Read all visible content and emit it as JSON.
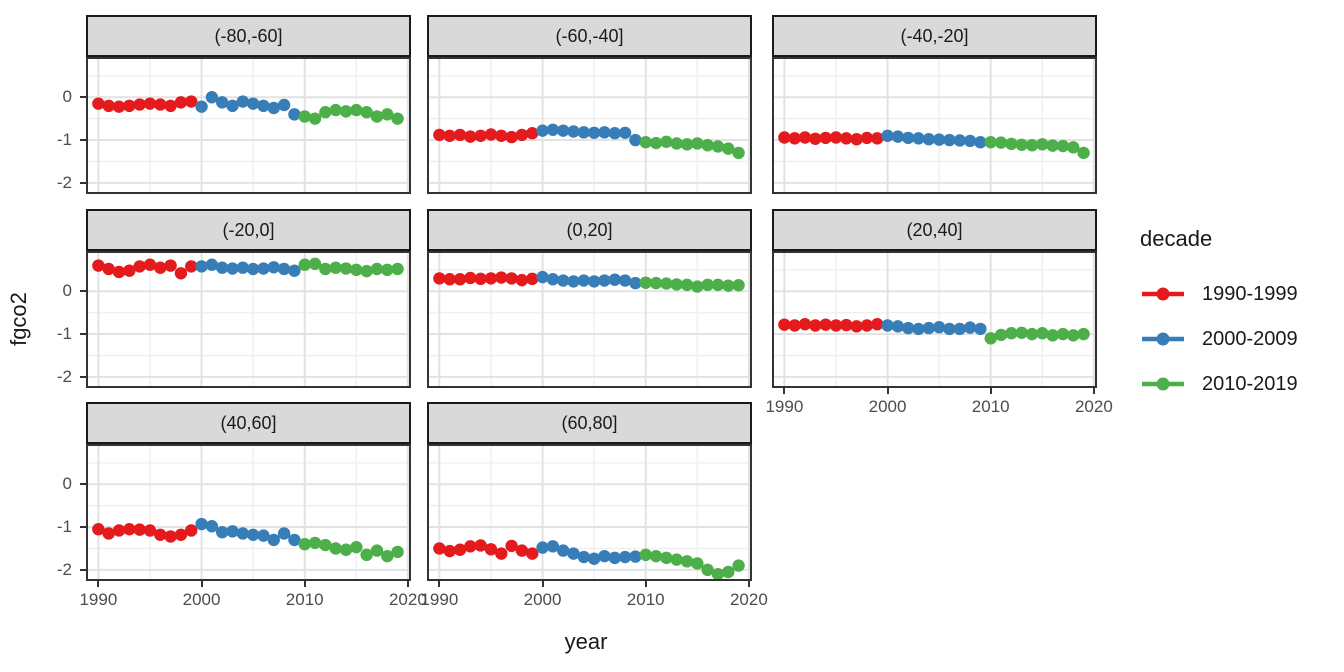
{
  "figure": {
    "x_axis_title": "year",
    "y_axis_title": "fgco2",
    "legend_title": "decade"
  },
  "chart_data": {
    "type": "scatter",
    "xlabel": "year",
    "ylabel": "fgco2",
    "facet_by": "latitude_band",
    "x_ticks": [
      1990,
      2000,
      2010,
      2020
    ],
    "y_ticks": [
      0,
      -1,
      -2
    ],
    "x_minor_ticks": [
      1995,
      2005,
      2015
    ],
    "y_minor_ticks": [
      0.5,
      -0.5,
      -1.5
    ],
    "xlim": [
      1988.8,
      2020.3
    ],
    "ylim": [
      -2.26,
      0.94
    ],
    "grid": {
      "major": true,
      "minor": true
    },
    "legend": {
      "title": "decade",
      "position": "right",
      "entries": [
        {
          "name": "1990-1999",
          "color": "#E41A1C",
          "start_year": 1990
        },
        {
          "name": "2000-2009",
          "color": "#377EB8",
          "start_year": 2000
        },
        {
          "name": "2010-2019",
          "color": "#4DAF4A",
          "start_year": 2010
        }
      ]
    },
    "panels": [
      {
        "label": "(-80,-60]",
        "values": {
          "1990-1999": [
            -0.15,
            -0.2,
            -0.22,
            -0.2,
            -0.17,
            -0.15,
            -0.17,
            -0.2,
            -0.12,
            -0.1
          ],
          "2000-2009": [
            -0.22,
            0,
            -0.12,
            -0.2,
            -0.1,
            -0.15,
            -0.2,
            -0.25,
            -0.18,
            -0.4
          ],
          "2010-2019": [
            -0.45,
            -0.5,
            -0.35,
            -0.3,
            -0.33,
            -0.3,
            -0.35,
            -0.45,
            -0.4,
            -0.5
          ]
        }
      },
      {
        "label": "(-60,-40]",
        "values": {
          "1990-1999": [
            -0.88,
            -0.9,
            -0.88,
            -0.92,
            -0.9,
            -0.87,
            -0.9,
            -0.93,
            -0.88,
            -0.84
          ],
          "2000-2009": [
            -0.78,
            -0.76,
            -0.78,
            -0.8,
            -0.82,
            -0.83,
            -0.82,
            -0.84,
            -0.83,
            -1.0
          ],
          "2010-2019": [
            -1.05,
            -1.07,
            -1.04,
            -1.08,
            -1.1,
            -1.08,
            -1.12,
            -1.15,
            -1.2,
            -1.3
          ]
        }
      },
      {
        "label": "(-40,-20]",
        "values": {
          "1990-1999": [
            -0.94,
            -0.96,
            -0.94,
            -0.97,
            -0.95,
            -0.94,
            -0.96,
            -0.98,
            -0.95,
            -0.96
          ],
          "2000-2009": [
            -0.9,
            -0.92,
            -0.95,
            -0.96,
            -0.98,
            -0.99,
            -1.0,
            -1.01,
            -1.02,
            -1.05
          ],
          "2010-2019": [
            -1.05,
            -1.06,
            -1.09,
            -1.11,
            -1.12,
            -1.1,
            -1.13,
            -1.14,
            -1.17,
            -1.3
          ]
        }
      },
      {
        "label": "(-20,0]",
        "values": {
          "1990-1999": [
            0.6,
            0.52,
            0.45,
            0.48,
            0.58,
            0.62,
            0.55,
            0.6,
            0.42,
            0.58
          ],
          "2000-2009": [
            0.58,
            0.62,
            0.55,
            0.53,
            0.55,
            0.52,
            0.53,
            0.56,
            0.52,
            0.48
          ],
          "2010-2019": [
            0.62,
            0.64,
            0.52,
            0.55,
            0.53,
            0.5,
            0.47,
            0.52,
            0.5,
            0.52
          ]
        }
      },
      {
        "label": "(0,20]",
        "values": {
          "1990-1999": [
            0.3,
            0.28,
            0.28,
            0.31,
            0.29,
            0.3,
            0.32,
            0.3,
            0.26,
            0.29
          ],
          "2000-2009": [
            0.33,
            0.28,
            0.25,
            0.23,
            0.25,
            0.23,
            0.25,
            0.27,
            0.25,
            0.19
          ],
          "2010-2019": [
            0.2,
            0.19,
            0.18,
            0.16,
            0.15,
            0.11,
            0.15,
            0.15,
            0.13,
            0.14
          ]
        }
      },
      {
        "label": "(20,40]",
        "values": {
          "1990-1999": [
            -0.78,
            -0.8,
            -0.77,
            -0.8,
            -0.78,
            -0.8,
            -0.79,
            -0.82,
            -0.8,
            -0.77
          ],
          "2000-2009": [
            -0.8,
            -0.82,
            -0.86,
            -0.88,
            -0.86,
            -0.84,
            -0.88,
            -0.88,
            -0.85,
            -0.88
          ],
          "2010-2019": [
            -1.1,
            -1.02,
            -0.98,
            -0.97,
            -1.0,
            -0.98,
            -1.03,
            -1.0,
            -1.03,
            -1.0
          ]
        }
      },
      {
        "label": "(40,60]",
        "values": {
          "1990-1999": [
            -1.05,
            -1.15,
            -1.08,
            -1.05,
            -1.06,
            -1.08,
            -1.18,
            -1.22,
            -1.18,
            -1.08
          ],
          "2000-2009": [
            -0.93,
            -0.98,
            -1.12,
            -1.1,
            -1.15,
            -1.18,
            -1.2,
            -1.3,
            -1.15,
            -1.3
          ],
          "2010-2019": [
            -1.4,
            -1.37,
            -1.42,
            -1.5,
            -1.53,
            -1.47,
            -1.65,
            -1.55,
            -1.68,
            -1.58
          ]
        }
      },
      {
        "label": "(60,80]",
        "values": {
          "1990-1999": [
            -1.5,
            -1.56,
            -1.53,
            -1.45,
            -1.43,
            -1.52,
            -1.62,
            -1.44,
            -1.55,
            -1.62
          ],
          "2000-2009": [
            -1.48,
            -1.45,
            -1.55,
            -1.62,
            -1.7,
            -1.74,
            -1.68,
            -1.72,
            -1.7,
            -1.69
          ],
          "2010-2019": [
            -1.65,
            -1.68,
            -1.72,
            -1.76,
            -1.8,
            -1.85,
            -2.0,
            -2.1,
            -2.05,
            -1.9
          ]
        }
      }
    ]
  },
  "style": {
    "strip_fill": "#D9D9D9",
    "panel_border": "#333333",
    "grid_major": "#E2E2E2",
    "grid_minor": "#F0F0F0",
    "tick_color": "#333333",
    "tick_label_color": "#4D4D4D",
    "text_color": "#1A1A1A",
    "point_radius": 6.2
  }
}
